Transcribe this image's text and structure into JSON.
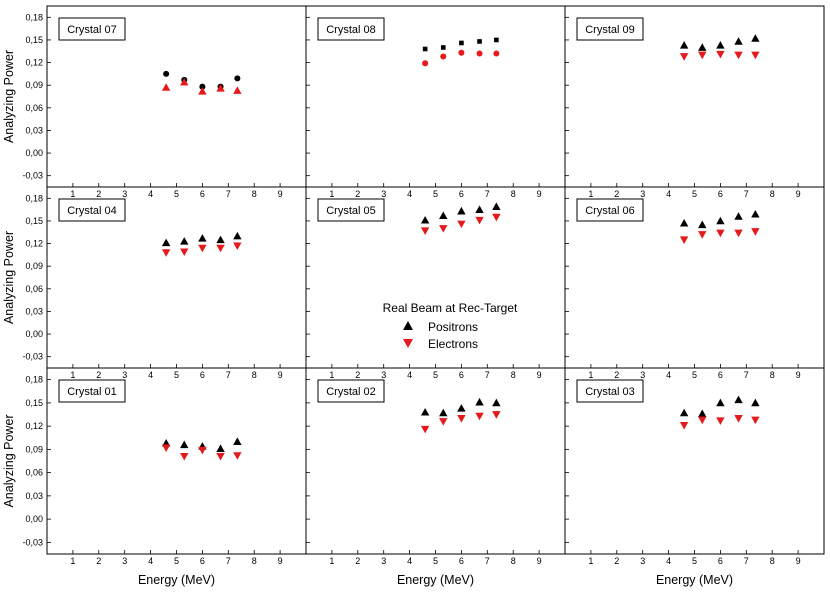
{
  "chart_data": {
    "type": "scatter",
    "layout": "3x3 panel grid",
    "xlabel": "Energy (MeV)",
    "ylabel": "Analyzing Power",
    "xlim": [
      0,
      10
    ],
    "ylim": [
      -0.045,
      0.195
    ],
    "xticks": [
      1,
      2,
      3,
      4,
      5,
      6,
      7,
      8,
      9
    ],
    "yticks": [
      -0.03,
      0.0,
      0.03,
      0.06,
      0.09,
      0.12,
      0.15,
      0.18
    ],
    "ytick_labels": [
      "-0,03",
      "0,00",
      "0,03",
      "0,06",
      "0,09",
      "0,12",
      "0,15",
      "0,18"
    ],
    "legend": {
      "title": "Real Beam at Rec-Target",
      "entries": [
        {
          "name": "Positrons",
          "marker": "triangle-up",
          "color": "#000000"
        },
        {
          "name": "Electrons",
          "marker": "triangle-down",
          "color": "#e41a1c"
        }
      ]
    },
    "x": [
      4.6,
      5.3,
      6.0,
      6.7,
      7.35
    ],
    "panels": [
      {
        "label": "Crystal 07",
        "positrons_marker": "circle",
        "electrons_marker": "triangle-up",
        "positrons": [
          0.105,
          0.097,
          0.088,
          0.088,
          0.099
        ],
        "electrons": [
          0.087,
          0.094,
          0.082,
          0.086,
          0.083
        ]
      },
      {
        "label": "Crystal 08",
        "positrons_marker": "square",
        "electrons_marker": "circle",
        "positrons": [
          0.138,
          0.14,
          0.146,
          0.148,
          0.15
        ],
        "electrons": [
          0.119,
          0.128,
          0.133,
          0.132,
          0.132
        ]
      },
      {
        "label": "Crystal 09",
        "positrons_marker": "triangle-up",
        "electrons_marker": "triangle-down",
        "positrons": [
          0.143,
          0.14,
          0.143,
          0.148,
          0.152
        ],
        "electrons": [
          0.128,
          0.13,
          0.131,
          0.13,
          0.13
        ]
      },
      {
        "label": "Crystal 04",
        "positrons_marker": "triangle-up",
        "electrons_marker": "triangle-down",
        "positrons": [
          0.121,
          0.123,
          0.127,
          0.125,
          0.13
        ],
        "electrons": [
          0.108,
          0.109,
          0.114,
          0.114,
          0.117
        ]
      },
      {
        "label": "Crystal 05",
        "positrons_marker": "triangle-up",
        "electrons_marker": "triangle-down",
        "positrons": [
          0.151,
          0.157,
          0.163,
          0.165,
          0.169
        ],
        "electrons": [
          0.137,
          0.14,
          0.146,
          0.151,
          0.155
        ]
      },
      {
        "label": "Crystal 06",
        "positrons_marker": "triangle-up",
        "electrons_marker": "triangle-down",
        "positrons": [
          0.147,
          0.145,
          0.15,
          0.156,
          0.159
        ],
        "electrons": [
          0.125,
          0.132,
          0.134,
          0.134,
          0.136
        ]
      },
      {
        "label": "Crystal 01",
        "positrons_marker": "triangle-up",
        "electrons_marker": "triangle-down",
        "positrons": [
          0.098,
          0.096,
          0.094,
          0.091,
          0.1
        ],
        "electrons": [
          0.092,
          0.081,
          0.089,
          0.081,
          0.082
        ]
      },
      {
        "label": "Crystal 02",
        "positrons_marker": "triangle-up",
        "electrons_marker": "triangle-down",
        "positrons": [
          0.138,
          0.137,
          0.143,
          0.151,
          0.15
        ],
        "electrons": [
          0.116,
          0.126,
          0.13,
          0.133,
          0.135
        ]
      },
      {
        "label": "Crystal 03",
        "positrons_marker": "triangle-up",
        "electrons_marker": "triangle-down",
        "positrons": [
          0.137,
          0.136,
          0.15,
          0.154,
          0.15
        ],
        "electrons": [
          0.121,
          0.128,
          0.127,
          0.13,
          0.128
        ]
      }
    ]
  }
}
